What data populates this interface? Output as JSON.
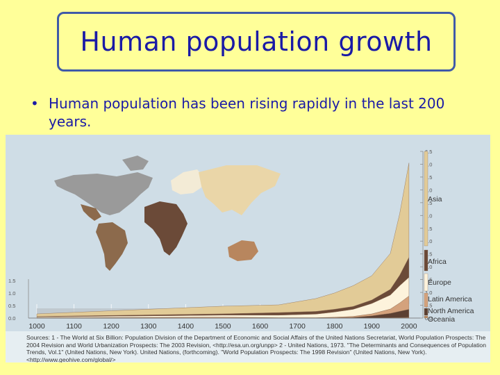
{
  "slide": {
    "title": "Human population growth",
    "bullet": "Human population has been rising rapidly in the last 200 years.",
    "bullet_marker": "•"
  },
  "chart_data": {
    "type": "area",
    "stacked": true,
    "ylabel": "",
    "xlabel": "",
    "x_ticks": [
      "1000",
      "1100",
      "1200",
      "1300",
      "1400",
      "1500",
      "1600",
      "1700",
      "1800",
      "1900",
      "2000"
    ],
    "y_right_ticks": [
      "6.5",
      "6.0",
      "5.5",
      "5.0",
      "4.5",
      "4.0",
      "3.5",
      "3.0",
      "2.5",
      "2.0",
      "1.5",
      "1.0",
      "0.5",
      "0.0"
    ],
    "y_left_ticks": [
      "1.5",
      "1.0",
      "0.5",
      "0.0"
    ],
    "xlim": [
      1000,
      2030
    ],
    "ylim": [
      0,
      6.5
    ],
    "x": [
      1000,
      1500,
      1650,
      1750,
      1800,
      1850,
      1900,
      1950,
      1975,
      2000
    ],
    "series": [
      {
        "name": "Oceania",
        "color": "#b98a63",
        "values": [
          0.001,
          0.002,
          0.002,
          0.002,
          0.002,
          0.002,
          0.006,
          0.013,
          0.021,
          0.03
        ]
      },
      {
        "name": "North America",
        "color": "#5c4032",
        "values": [
          0.001,
          0.002,
          0.002,
          0.002,
          0.007,
          0.026,
          0.082,
          0.172,
          0.243,
          0.31
        ]
      },
      {
        "name": "Latin America",
        "color": "#d4a27c",
        "values": [
          0.01,
          0.03,
          0.01,
          0.01,
          0.024,
          0.038,
          0.074,
          0.167,
          0.323,
          0.52
        ]
      },
      {
        "name": "Europe",
        "color": "#fdf3dc",
        "values": [
          0.03,
          0.08,
          0.1,
          0.14,
          0.203,
          0.276,
          0.408,
          0.547,
          0.676,
          0.73
        ]
      },
      {
        "name": "Africa",
        "color": "#6b4a38",
        "values": [
          0.02,
          0.05,
          0.1,
          0.106,
          0.107,
          0.111,
          0.133,
          0.221,
          0.406,
          0.78
        ]
      },
      {
        "name": "Asia",
        "color": "#e2cb97",
        "values": [
          0.1,
          0.3,
          0.3,
          0.502,
          0.635,
          0.809,
          0.947,
          1.402,
          2.395,
          3.68
        ]
      }
    ],
    "legend": [
      {
        "label": "Asia",
        "color": "#e2cb97"
      },
      {
        "label": "Africa",
        "color": "#6b4a38"
      },
      {
        "label": "Europe",
        "color": "#fdf3dc"
      },
      {
        "label": "Latin America",
        "color": "#d4a27c"
      },
      {
        "label": "North America",
        "color": "#5c4032"
      },
      {
        "label": "Oceania",
        "color": "#b98a63"
      }
    ],
    "legend_placement": "right",
    "map_regions": [
      {
        "region": "North America",
        "color": "#9a9a9a"
      },
      {
        "region": "Latin America",
        "color": "#8c6a4c"
      },
      {
        "region": "Europe",
        "color": "#f3ebd6"
      },
      {
        "region": "Asia",
        "color": "#ead6a8"
      },
      {
        "region": "Africa",
        "color": "#6b4a38"
      },
      {
        "region": "Oceania",
        "color": "#b8865e"
      }
    ],
    "sources": "Sources: 1 - The World at Six Billion: Population Division of the Department of Economic and Social Affairs of the United Nations Secretariat, World Population Prospects: The 2004 Revision and World Urbanization Prospects: The 2003 Revision, <http://esa.un.org/unpp> 2 - United Nations, 1973. \"The Determinants and Consequences of Population Trends, Vol.1\" (United Nations, New York). United Nations, (forthcoming). \"World Population Prospects: The 1998 Revision\" (United Nations, New York). <http://www.geohive.com/global/>"
  }
}
